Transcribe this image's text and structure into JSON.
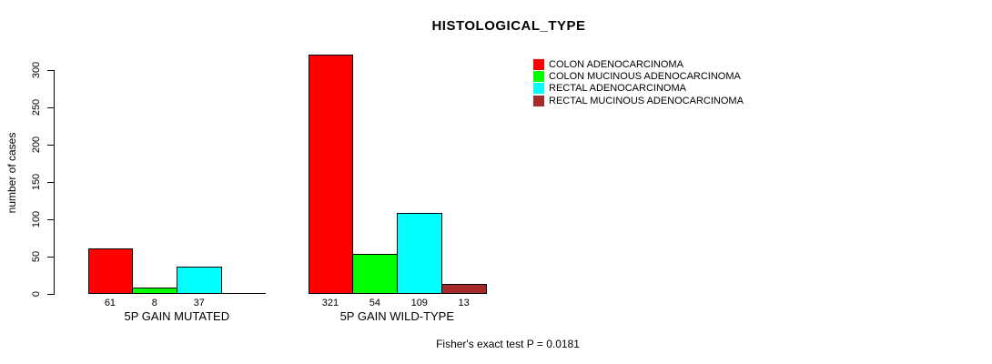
{
  "chart_data": {
    "type": "bar",
    "title": "HISTOLOGICAL_TYPE",
    "ylabel": "number of cases",
    "annotation": "Fisher's exact test P = 0.0181",
    "yticks": [
      0,
      50,
      100,
      150,
      200,
      250,
      300
    ],
    "ylim": [
      0,
      300
    ],
    "grid": false,
    "legend_position": "right",
    "categories": [
      "5P GAIN MUTATED",
      "5P GAIN WILD-TYPE"
    ],
    "series": [
      {
        "name": "COLON ADENOCARCINOMA",
        "color": "#ff0000",
        "values": [
          61,
          321
        ]
      },
      {
        "name": "COLON MUCINOUS ADENOCARCINOMA",
        "color": "#00ff00",
        "values": [
          8,
          54
        ]
      },
      {
        "name": "RECTAL ADENOCARCINOMA",
        "color": "#00ffff",
        "values": [
          37,
          109
        ]
      },
      {
        "name": "RECTAL MUCINOUS ADENOCARCINOMA",
        "color": "#a52a2a",
        "values": [
          0,
          13
        ]
      }
    ],
    "bar_value_labels_shown": true
  },
  "legend": {
    "items": [
      {
        "label": "COLON ADENOCARCINOMA",
        "color": "#ff0000"
      },
      {
        "label": "COLON MUCINOUS ADENOCARCINOMA",
        "color": "#00ff00"
      },
      {
        "label": "RECTAL ADENOCARCINOMA",
        "color": "#00ffff"
      },
      {
        "label": "RECTAL MUCINOUS ADENOCARCINOMA",
        "color": "#a52a2a"
      }
    ]
  }
}
